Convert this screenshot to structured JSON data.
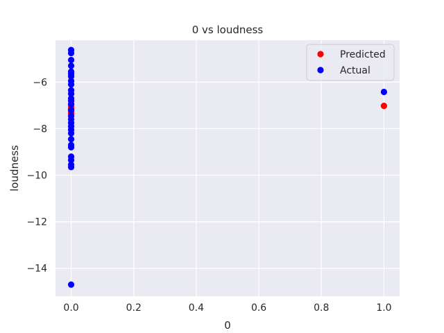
{
  "chart_data": {
    "type": "scatter",
    "title": "0 vs loudness",
    "xlabel": "0",
    "ylabel": "loudness",
    "xlim": [
      -0.05,
      1.05
    ],
    "ylim": [
      -15.2,
      -4.2
    ],
    "xticks": [
      0.0,
      0.2,
      0.4,
      0.6,
      0.8,
      1.0
    ],
    "xtick_labels": [
      "0.0",
      "0.2",
      "0.4",
      "0.6",
      "0.8",
      "1.0"
    ],
    "yticks": [
      -14,
      -12,
      -10,
      -8,
      -6
    ],
    "ytick_labels": [
      "−14",
      "−12",
      "−10",
      "−8",
      "−6"
    ],
    "grid": true,
    "legend_position": "top-right",
    "background_color": "#eaeaf2",
    "series": [
      {
        "name": "Predicted",
        "color": "#ff0000",
        "points": [
          {
            "x": 0,
            "y": -6.95
          },
          {
            "x": 0,
            "y": -7.05
          },
          {
            "x": 0,
            "y": -7.15
          },
          {
            "x": 0,
            "y": -7.25
          },
          {
            "x": 0,
            "y": -7.35
          },
          {
            "x": 1,
            "y": -7.02
          }
        ]
      },
      {
        "name": "Actual",
        "color": "#0000ff",
        "points": [
          {
            "x": 0,
            "y": -4.62
          },
          {
            "x": 0,
            "y": -4.75
          },
          {
            "x": 0,
            "y": -5.05
          },
          {
            "x": 0,
            "y": -5.3
          },
          {
            "x": 0,
            "y": -5.55
          },
          {
            "x": 0,
            "y": -5.65
          },
          {
            "x": 0,
            "y": -5.75
          },
          {
            "x": 0,
            "y": -5.95
          },
          {
            "x": 0,
            "y": -6.1
          },
          {
            "x": 0,
            "y": -6.35
          },
          {
            "x": 0,
            "y": -6.5
          },
          {
            "x": 0,
            "y": -6.7
          },
          {
            "x": 0,
            "y": -6.8
          },
          {
            "x": 0,
            "y": -6.95
          },
          {
            "x": 0,
            "y": -7.2
          },
          {
            "x": 0,
            "y": -7.45
          },
          {
            "x": 0,
            "y": -7.6
          },
          {
            "x": 0,
            "y": -7.75
          },
          {
            "x": 0,
            "y": -7.9
          },
          {
            "x": 0,
            "y": -8.05
          },
          {
            "x": 0,
            "y": -8.2
          },
          {
            "x": 0,
            "y": -8.45
          },
          {
            "x": 0,
            "y": -8.7
          },
          {
            "x": 0,
            "y": -8.8
          },
          {
            "x": 0,
            "y": -9.2
          },
          {
            "x": 0,
            "y": -9.35
          },
          {
            "x": 0,
            "y": -9.55
          },
          {
            "x": 0,
            "y": -9.65
          },
          {
            "x": 0,
            "y": -14.7
          },
          {
            "x": 1,
            "y": -6.42
          }
        ]
      }
    ]
  }
}
